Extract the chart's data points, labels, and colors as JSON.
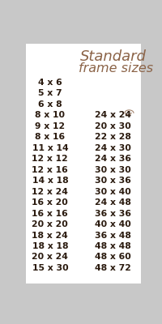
{
  "title_line1": "Standard",
  "title_line2": "frame sizes",
  "title_color": "#8B6347",
  "background_color": "#c8c8c8",
  "inner_bg": "#ffffff",
  "border_color": "#888888",
  "text_color": "#2a1a0e",
  "left_col": [
    "4 x 6",
    "5 x 7",
    "6 x 8",
    "8 x 10",
    "9 x 12",
    "8 x 16",
    "11 x 14",
    "12 x 12",
    "12 x 16",
    "14 x 18",
    "12 x 24",
    "16 x 20",
    "16 x 16",
    "20 x 20",
    "18 x 24",
    "18 x 18",
    "20 x 24",
    "15 x 30"
  ],
  "right_col": [
    "",
    "",
    "",
    "24 x 24",
    "20 x 30",
    "22 x 28",
    "24 x 30",
    "24 x 36",
    "30 x 30",
    "30 x 36",
    "30 x 40",
    "24 x 48",
    "36 x 36",
    "40 x 40",
    "36 x 48",
    "48 x 48",
    "48 x 60",
    "48 x 72"
  ],
  "figsize": [
    2.01,
    4.0
  ],
  "dpi": 100
}
